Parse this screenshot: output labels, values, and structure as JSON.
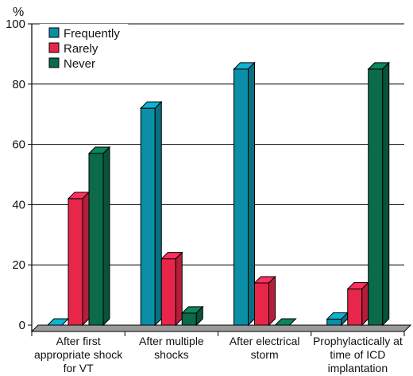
{
  "chart_data": {
    "type": "bar",
    "ylabel": "%",
    "ylim": [
      0,
      100
    ],
    "yticks": [
      0,
      20,
      40,
      60,
      80,
      100
    ],
    "grid": true,
    "legend_position": "top-left",
    "categories": [
      [
        "After first",
        "appropriate shock",
        "for VT"
      ],
      [
        "After multiple",
        "shocks"
      ],
      [
        "After electrical",
        "storm"
      ],
      [
        "Prophylactically at",
        "time of ICD",
        "implantation"
      ]
    ],
    "series": [
      {
        "name": "Frequently",
        "color": "#0a8fa6",
        "values": [
          0,
          72,
          85,
          2
        ]
      },
      {
        "name": "Rarely",
        "color": "#e8264a",
        "values": [
          42,
          22,
          14,
          12
        ]
      },
      {
        "name": "Never",
        "color": "#0a6a4a",
        "values": [
          57,
          4,
          0,
          85
        ]
      }
    ]
  }
}
